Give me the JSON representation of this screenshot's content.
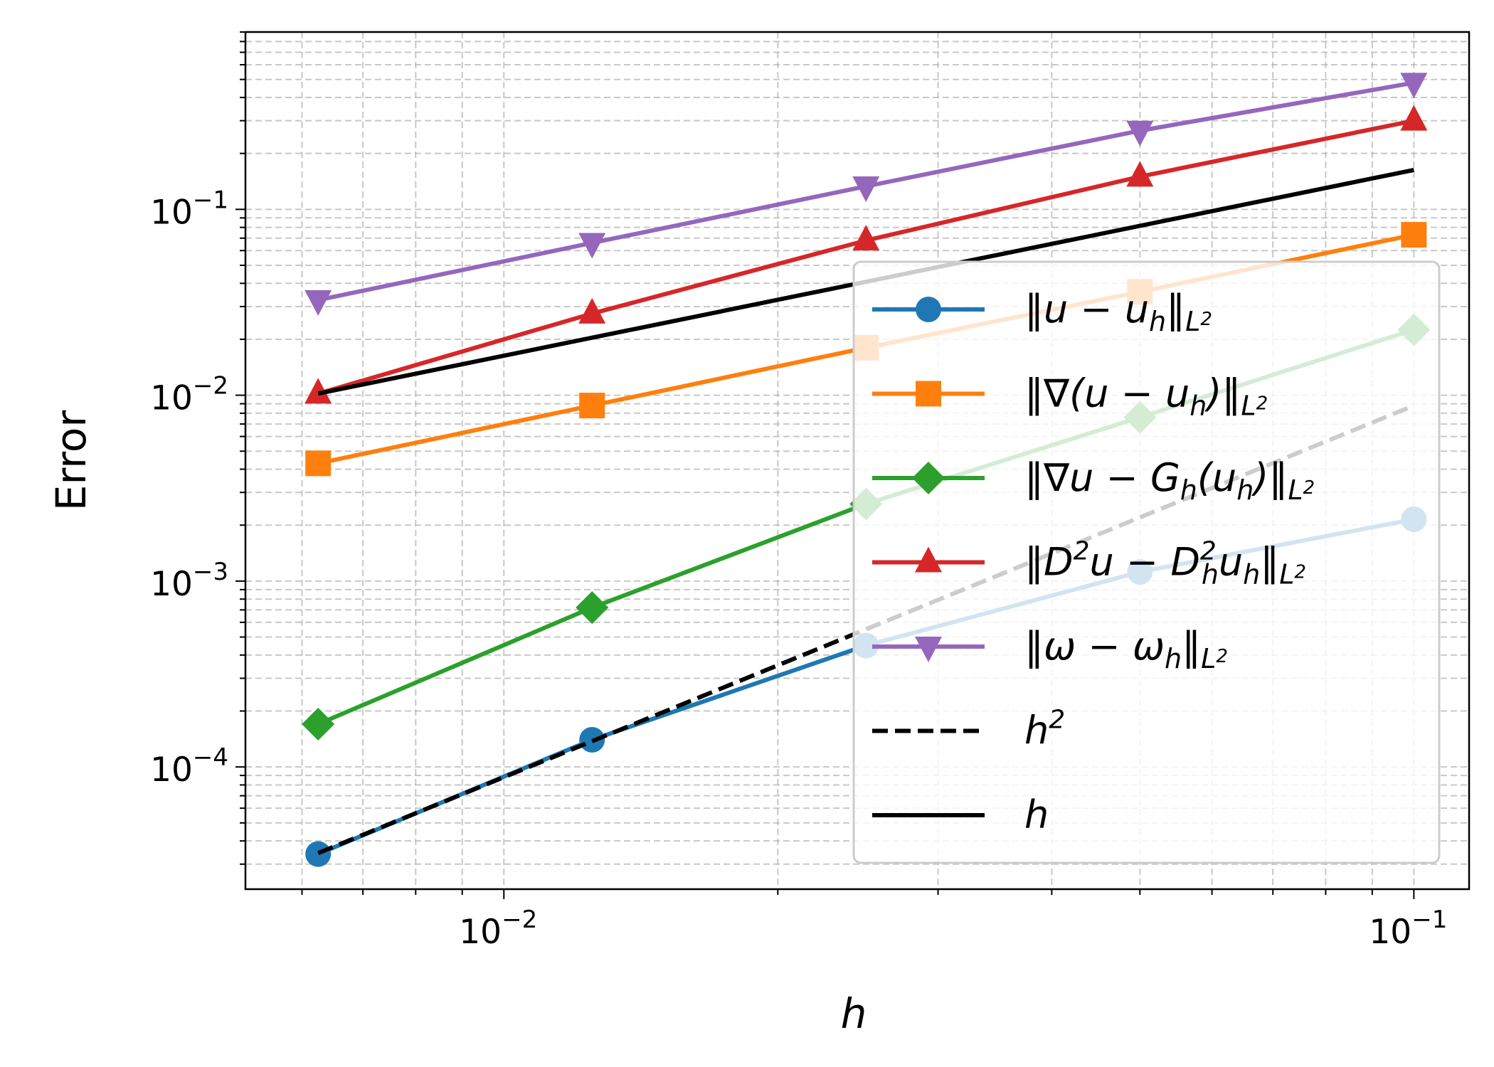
{
  "chart_data": {
    "type": "line",
    "title": "",
    "xlabel": "h",
    "ylabel": "Error",
    "xscale": "log",
    "yscale": "log",
    "xlim": [
      0.0052,
      0.115
    ],
    "ylim": [
      2.2e-05,
      0.9
    ],
    "grid": true,
    "x_ticks": [
      {
        "value": 0.01,
        "base": "10",
        "exp": "−2"
      },
      {
        "value": 0.1,
        "base": "10",
        "exp": "−1"
      }
    ],
    "y_ticks": [
      {
        "value": 0.0001,
        "base": "10",
        "exp": "−4"
      },
      {
        "value": 0.001,
        "base": "10",
        "exp": "−3"
      },
      {
        "value": 0.01,
        "base": "10",
        "exp": "−2"
      },
      {
        "value": 0.1,
        "base": "10",
        "exp": "−1"
      }
    ],
    "legend_position": "lower-right",
    "series": [
      {
        "name": "‖u − uₕ‖_{L²}",
        "color": "#1f77b4",
        "marker": "circle",
        "linestyle": "solid",
        "x": [
          0.00625,
          0.0125,
          0.025,
          0.05,
          0.1
        ],
        "values": [
          3.4e-05,
          0.00014,
          0.00045,
          0.00112,
          0.00215
        ]
      },
      {
        "name": "‖∇(u − uₕ)‖_{L²}",
        "color": "#ff7f0e",
        "marker": "square",
        "linestyle": "solid",
        "x": [
          0.00625,
          0.0125,
          0.025,
          0.05,
          0.1
        ],
        "values": [
          0.0043,
          0.0088,
          0.018,
          0.036,
          0.073
        ]
      },
      {
        "name": "‖∇u − Gₕ(uₕ)‖_{L²}",
        "color": "#2ca02c",
        "marker": "diamond",
        "linestyle": "solid",
        "x": [
          0.00625,
          0.0125,
          0.025,
          0.05,
          0.1
        ],
        "values": [
          0.00017,
          0.00072,
          0.0026,
          0.0076,
          0.0225
        ]
      },
      {
        "name": "‖D²u − D²ₕuₕ‖_{L²}",
        "color": "#d62728",
        "marker": "triangle-up",
        "linestyle": "solid",
        "x": [
          0.00625,
          0.0125,
          0.025,
          0.05,
          0.1
        ],
        "values": [
          0.0102,
          0.0275,
          0.068,
          0.15,
          0.3
        ]
      },
      {
        "name": "‖ω − ωₕ‖_{L²}",
        "color": "#9467bd",
        "marker": "triangle-down",
        "linestyle": "solid",
        "x": [
          0.00625,
          0.0125,
          0.025,
          0.05,
          0.1
        ],
        "values": [
          0.0325,
          0.066,
          0.133,
          0.265,
          0.48
        ]
      },
      {
        "name": "h²",
        "color": "#000000",
        "marker": "none",
        "linestyle": "dashed",
        "x": [
          0.00625,
          0.1
        ],
        "values": [
          3.44e-05,
          0.0088
        ]
      },
      {
        "name": "h",
        "color": "#000000",
        "marker": "none",
        "linestyle": "solid",
        "x": [
          0.00625,
          0.1
        ],
        "values": [
          0.0102,
          0.163
        ]
      }
    ],
    "legend_entries": [
      {
        "parts": [
          {
            "t": "‖"
          },
          {
            "t": "u"
          },
          {
            "t": " − "
          },
          {
            "t": "u"
          },
          {
            "t": "h",
            "sub": true
          },
          {
            "t": "‖"
          },
          {
            "t": "L",
            "sub": true
          },
          {
            "t": "2",
            "subsup": true
          }
        ]
      },
      {
        "parts": [
          {
            "t": "‖∇("
          },
          {
            "t": "u"
          },
          {
            "t": " − "
          },
          {
            "t": "u"
          },
          {
            "t": "h",
            "sub": true
          },
          {
            "t": ")‖"
          },
          {
            "t": "L",
            "sub": true
          },
          {
            "t": "2",
            "subsup": true
          }
        ]
      },
      {
        "parts": [
          {
            "t": "‖∇"
          },
          {
            "t": "u"
          },
          {
            "t": " − "
          },
          {
            "t": "G"
          },
          {
            "t": "h",
            "sub": true
          },
          {
            "t": "("
          },
          {
            "t": "u"
          },
          {
            "t": "h",
            "sub": true
          },
          {
            "t": ")‖"
          },
          {
            "t": "L",
            "sub": true
          },
          {
            "t": "2",
            "subsup": true
          }
        ]
      },
      {
        "parts": [
          {
            "t": "‖"
          },
          {
            "t": "D"
          },
          {
            "t": "2",
            "sup": true
          },
          {
            "t": "u"
          },
          {
            "t": " − "
          },
          {
            "t": "D"
          },
          {
            "t": "2",
            "supsub": true
          },
          {
            "t": "h",
            "sub": true
          },
          {
            "t": "u"
          },
          {
            "t": "h",
            "sub": true
          },
          {
            "t": "‖"
          },
          {
            "t": "L",
            "sub": true
          },
          {
            "t": "2",
            "subsup": true
          }
        ]
      },
      {
        "parts": [
          {
            "t": "‖"
          },
          {
            "t": "ω"
          },
          {
            "t": " − "
          },
          {
            "t": "ω"
          },
          {
            "t": "h",
            "sub": true
          },
          {
            "t": "‖"
          },
          {
            "t": "L",
            "sub": true
          },
          {
            "t": "2",
            "subsup": true
          }
        ]
      },
      {
        "parts": [
          {
            "t": "h"
          },
          {
            "t": "2",
            "sup": true
          }
        ]
      },
      {
        "parts": [
          {
            "t": "h"
          }
        ]
      }
    ]
  }
}
